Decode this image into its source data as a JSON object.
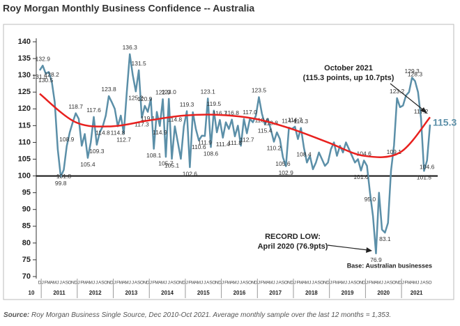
{
  "chart_data": {
    "type": "line",
    "title": "Roy Morgan Monthly Business Confidence -- Australia",
    "source_label": "Source:",
    "source_text": " Roy Morgan Business Single Source, Dec 2010-Oct 2021. Average monthly sample over the last 12 months = 1,353.",
    "annotations": [
      "October 2021",
      "(115.3 points, up 10.7pts)",
      "RECORD LOW:",
      "April 2020 (76.9pts)",
      "Base: Australian businesses"
    ],
    "categories": [
      "D",
      "J",
      "F",
      "M",
      "A",
      "M",
      "J",
      "J",
      "A",
      "S",
      "O",
      "N",
      "D",
      "J",
      "F",
      "M",
      "A",
      "M",
      "J",
      "J",
      "A",
      "S",
      "O",
      "N",
      "D",
      "J",
      "F",
      "M",
      "A",
      "M",
      "J",
      "J",
      "A",
      "S",
      "O",
      "N",
      "D",
      "J",
      "F",
      "M",
      "A",
      "M",
      "J",
      "J",
      "A",
      "S",
      "O",
      "N",
      "D",
      "J",
      "F",
      "M",
      "A",
      "M",
      "J",
      "J",
      "A",
      "S",
      "O",
      "N",
      "D",
      "J",
      "F",
      "M",
      "A",
      "M",
      "J",
      "J",
      "A",
      "S",
      "O",
      "N",
      "D",
      "J",
      "F",
      "M",
      "A",
      "M",
      "J",
      "J",
      "A",
      "S",
      "O",
      "N",
      "D",
      "J",
      "F",
      "M",
      "A",
      "M",
      "J",
      "J",
      "A",
      "S",
      "O",
      "N",
      "D",
      "J",
      "F",
      "M",
      "A",
      "M",
      "J",
      "J",
      "A",
      "S",
      "O",
      "N",
      "D",
      "J",
      "F",
      "M",
      "A",
      "M",
      "J",
      "J",
      "A",
      "S",
      "O",
      "N",
      "D",
      "J",
      "F",
      "M",
      "A",
      "M",
      "J",
      "J",
      "A",
      "S",
      "O"
    ],
    "years": [
      "10",
      "2011",
      "2012",
      "2013",
      "2014",
      "2015",
      "2016",
      "2017",
      "2018",
      "2019",
      "2020",
      "2021"
    ],
    "series": [
      {
        "color": "#5b8fa8",
        "values": [
          131.5,
          132.9,
          130.5,
          131,
          128.2,
          122,
          108,
          99.8,
          101.8,
          108.9,
          113,
          116,
          118.7,
          117,
          109,
          112.5,
          105.4,
          110,
          117.6,
          109.3,
          113,
          114.8,
          118,
          123.8,
          122,
          120,
          114.8,
          118,
          112.7,
          125,
          136.3,
          130,
          125.2,
          131.5,
          117.3,
          120.9,
          119.1,
          123,
          108.1,
          119.1,
          114.9,
          122.9,
          105.7,
          123.0,
          105.1,
          114.8,
          110,
          105.1,
          114.8,
          119.3,
          102.6,
          119,
          114,
          110.6,
          112,
          111.9,
          123.1,
          108.6,
          119.5,
          113,
          116.7,
          111.4,
          116,
          114,
          116.8,
          111.8,
          115,
          109,
          117,
          112.7,
          117.0,
          116,
          118,
          123.5,
          118.6,
          115.4,
          117,
          113.8,
          110.2,
          113,
          111,
          105.6,
          102.9,
          114.4,
          114,
          114.7,
          111,
          114.3,
          108.4,
          104,
          106,
          102,
          104,
          107,
          105,
          103,
          104,
          108,
          110,
          106,
          109,
          107,
          110,
          108,
          106,
          104,
          105,
          101.6,
          104.6,
          103,
          95.0,
          88,
          76.9,
          95.0,
          84,
          83.1,
          86,
          101.5,
          109.1,
          123.2,
          120.5,
          121,
          124,
          125,
          129.3,
          128.3,
          125,
          117.2,
          101.5,
          104.6,
          115.3
        ],
        "value_labels": [
          "131.5",
          "132.9",
          "130.5",
          null,
          "128.2",
          null,
          null,
          "99.8",
          "101.8",
          "108.9",
          null,
          null,
          "118.7",
          null,
          null,
          null,
          "105.4",
          null,
          "117.6",
          "109.3",
          null,
          "114.8",
          null,
          "123.8",
          null,
          null,
          "114.8",
          null,
          "112.7",
          null,
          "136.3",
          null,
          "125.2",
          "131.5",
          "117.3",
          "120.9",
          "119.1",
          null,
          "108.1",
          null,
          "114.9",
          "122.9",
          "105.7",
          "123.0",
          "105.1",
          "114.8",
          null,
          null,
          null,
          "119.3",
          "102.6",
          null,
          null,
          "110.6",
          null,
          "111.9",
          "123.1",
          "108.6",
          "119.5",
          null,
          "116.7",
          "111.4",
          null,
          null,
          "116.8",
          "111.8",
          null,
          null,
          null,
          "112.7",
          "117.0",
          null,
          null,
          "123.5",
          "118.6",
          "115.4",
          null,
          "113.8",
          "110.2",
          null,
          null,
          "105.6",
          "102.9",
          "114.4",
          null,
          "114.7",
          null,
          "114.3",
          "108.4",
          null,
          null,
          null,
          null,
          null,
          null,
          null,
          null,
          null,
          null,
          null,
          null,
          null,
          null,
          null,
          null,
          null,
          null,
          "101.6",
          "104.6",
          null,
          "95.0",
          null,
          "76.9",
          null,
          null,
          "83.1",
          null,
          null,
          "109.1",
          "123.2",
          null,
          null,
          null,
          null,
          "129.3",
          "128.3",
          null,
          "117.2",
          "101.5",
          "104.6",
          "115.3"
        ]
      }
    ],
    "trend": {
      "color": "#e8201e",
      "x": [
        0,
        12,
        24,
        36,
        48,
        60,
        72,
        84,
        96,
        108,
        120,
        130
      ],
      "values": [
        124.5,
        116,
        114.8,
        116.5,
        118,
        118.2,
        117,
        114,
        110,
        106,
        107,
        117.5
      ]
    },
    "reference_line": 100,
    "ylim": [
      70,
      140
    ],
    "yticks": [
      70,
      75,
      80,
      85,
      90,
      95,
      100,
      105,
      110,
      115,
      120,
      125,
      130,
      135,
      140
    ]
  }
}
